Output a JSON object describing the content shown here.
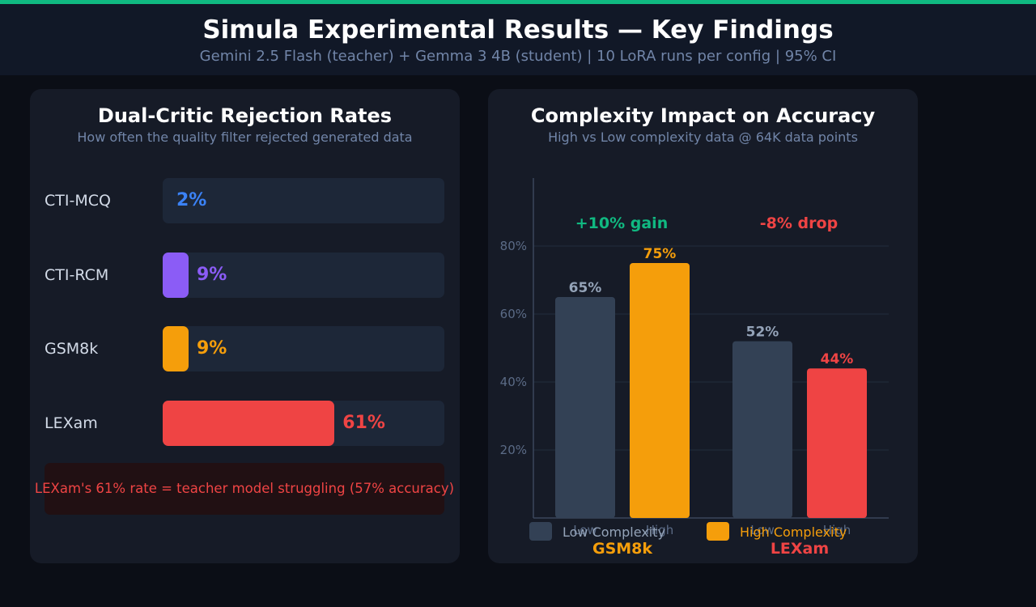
{
  "header": {
    "title": "Simula Experimental Results — Key Findings",
    "subtitle": "Gemini 2.5 Flash (teacher) + Gemma 3 4B (student) | 10 LoRA runs per config | 95% CI"
  },
  "colors": {
    "accent_green": "#10b981",
    "blue": "#3b82f6",
    "purple": "#8b5cf6",
    "amber": "#f59e0b",
    "red": "#ef4444",
    "slate": "#334155"
  },
  "rejection_panel": {
    "title": "Dual-Critic Rejection Rates",
    "subtitle": "How often the quality filter rejected generated data",
    "note": "LEXam's 61% rate = teacher model struggling (57% accuracy)"
  },
  "impact_panel": {
    "title": "Complexity Impact on Accuracy",
    "subtitle": "High vs Low complexity data @ 64K data points",
    "gain_label": "+10% gain",
    "drop_label": "-8% drop",
    "legend_low": "Low Complexity",
    "legend_high": "High Complexity"
  },
  "chart_data": [
    {
      "type": "bar",
      "orientation": "horizontal",
      "title": "Dual-Critic Rejection Rates",
      "categories": [
        "CTI-MCQ",
        "CTI-RCM",
        "GSM8k",
        "LEXam"
      ],
      "values": [
        2,
        9,
        9,
        61
      ],
      "value_labels": [
        "2%",
        "9%",
        "9%",
        "61%"
      ],
      "colors": [
        "#3b82f6",
        "#8b5cf6",
        "#f59e0b",
        "#ef4444"
      ],
      "xlim": [
        0,
        100
      ]
    },
    {
      "type": "bar",
      "title": "Complexity Impact on Accuracy",
      "groups": [
        "GSM8k",
        "LEXam"
      ],
      "group_colors": [
        "#f59e0b",
        "#ef4444"
      ],
      "categories": [
        "Low",
        "High"
      ],
      "series": [
        {
          "name": "Low Complexity",
          "values": [
            65,
            52
          ],
          "labels": [
            "65%",
            "52%"
          ],
          "colors": [
            "#334155",
            "#334155"
          ],
          "label_color": "#94a3b8"
        },
        {
          "name": "High Complexity",
          "values": [
            75,
            44
          ],
          "labels": [
            "75%",
            "44%"
          ],
          "colors": [
            "#f59e0b",
            "#ef4444"
          ],
          "label_color": "#ef4444"
        }
      ],
      "yticks": [
        "20%",
        "40%",
        "60%",
        "80%"
      ],
      "ytick_values": [
        20,
        40,
        60,
        80
      ],
      "ylim": [
        0,
        100
      ],
      "grid": true,
      "legend": "bottom"
    }
  ]
}
